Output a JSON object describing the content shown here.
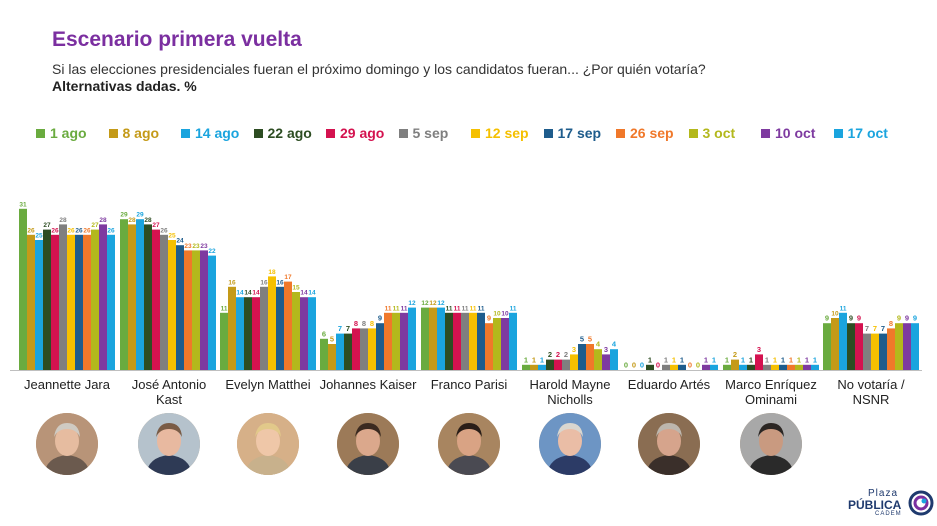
{
  "header": {
    "title": "Escenario primera vuelta",
    "subtitle": "Si las elecciones presidenciales fueran el próximo domingo y los candidatos fueran... ¿Por quién votaría?",
    "subtitle2": "Alternativas dadas. %"
  },
  "brand": {
    "line1": "Plaza",
    "line2": "PÚBLICA",
    "line3": "CADEM"
  },
  "chart_data": {
    "type": "bar",
    "title": "Escenario primera vuelta",
    "categories": [
      "Jeannette Jara",
      "José Antonio Kast",
      "Evelyn Matthei",
      "Johannes Kaiser",
      "Franco Parisi",
      "Harold Mayne Nicholls",
      "Eduardo Artés",
      "Marco Enríquez Ominami",
      "No votaría / NSNR"
    ],
    "category_labels": [
      [
        "Jeannette Jara"
      ],
      [
        "José Antonio",
        "Kast"
      ],
      [
        "Evelyn Matthei"
      ],
      [
        "Johannes Kaiser"
      ],
      [
        "Franco Parisi"
      ],
      [
        "Harold Mayne",
        "Nicholls"
      ],
      [
        "Eduardo Artés"
      ],
      [
        "Marco Enríquez",
        "Ominami"
      ],
      [
        "No votaría /",
        "NSNR"
      ]
    ],
    "ylim": [
      0,
      31
    ],
    "grid": false,
    "legend_position": "top",
    "series": [
      {
        "name": "1 ago",
        "color": "#6aab3f",
        "values": [
          31,
          29,
          11,
          6,
          12,
          1,
          0,
          1,
          9
        ]
      },
      {
        "name": "8 ago",
        "color": "#c49a18",
        "values": [
          26,
          28,
          16,
          5,
          12,
          1,
          0,
          2,
          10
        ]
      },
      {
        "name": "14 ago",
        "color": "#1aa4de",
        "values": [
          25,
          29,
          14,
          7,
          12,
          1,
          0,
          1,
          11
        ]
      },
      {
        "name": "22 ago",
        "color": "#2d4d22",
        "values": [
          27,
          28,
          14,
          7,
          11,
          2,
          1,
          1,
          9
        ]
      },
      {
        "name": "29 ago",
        "color": "#d4124f",
        "values": [
          26,
          27,
          14,
          8,
          11,
          2,
          0,
          3,
          9
        ]
      },
      {
        "name": "5 sep",
        "color": "#7f7f7f",
        "values": [
          28,
          26,
          16,
          8,
          11,
          2,
          1,
          1,
          7
        ]
      },
      {
        "name": "12 sep",
        "color": "#f5c000",
        "values": [
          26,
          25,
          18,
          8,
          11,
          3,
          1,
          1,
          7
        ]
      },
      {
        "name": "17 sep",
        "color": "#1e5c8c",
        "values": [
          26,
          24,
          16,
          9,
          11,
          5,
          1,
          1,
          7
        ]
      },
      {
        "name": "26 sep",
        "color": "#f0782a",
        "values": [
          26,
          23,
          17,
          11,
          9,
          5,
          0,
          1,
          8
        ]
      },
      {
        "name": "3 oct",
        "color": "#b3b81c",
        "values": [
          27,
          23,
          15,
          11,
          10,
          4,
          0,
          1,
          9
        ]
      },
      {
        "name": "10 oct",
        "color": "#7e3aa0",
        "values": [
          28,
          23,
          14,
          11,
          10,
          3,
          1,
          1,
          9
        ]
      },
      {
        "name": "17 oct",
        "color": "#1aa4de",
        "values": [
          26,
          22,
          14,
          12,
          11,
          4,
          1,
          1,
          9
        ]
      }
    ]
  },
  "photos": [
    {
      "icon": "candidate-photo-jara",
      "bg": "#b89478",
      "skin": "#e6bca0",
      "hair": "#cfcac2",
      "shirt": "#6b5a4e"
    },
    {
      "icon": "candidate-photo-kast",
      "bg": "#b5c2cc",
      "skin": "#e8b9a0",
      "hair": "#7a5c46",
      "shirt": "#2e3a55"
    },
    {
      "icon": "candidate-photo-matthei",
      "bg": "#d6b088",
      "skin": "#efc7a8",
      "hair": "#e2c98a",
      "shirt": "#c8b18c"
    },
    {
      "icon": "candidate-photo-kaiser",
      "bg": "#9c7a58",
      "skin": "#dba88c",
      "hair": "#3b2a20",
      "shirt": "#3a3f48"
    },
    {
      "icon": "candidate-photo-parisi",
      "bg": "#a88560",
      "skin": "#d9a384",
      "hair": "#2a1e18",
      "shirt": "#4a4a52"
    },
    {
      "icon": "candidate-photo-mayne-nicholls",
      "bg": "#6d95c4",
      "skin": "#eabda6",
      "hair": "#d9d6cf",
      "shirt": "#2c3b66"
    },
    {
      "icon": "candidate-photo-artes",
      "bg": "#8a6d52",
      "skin": "#d6a48c",
      "hair": "#bdb6ad",
      "shirt": "#3a2f2a"
    },
    {
      "icon": "candidate-photo-enriquez-ominami",
      "bg": "#a8a8a8",
      "skin": "#c99a80",
      "hair": "#2b2623",
      "shirt": "#2a2a2a"
    }
  ]
}
